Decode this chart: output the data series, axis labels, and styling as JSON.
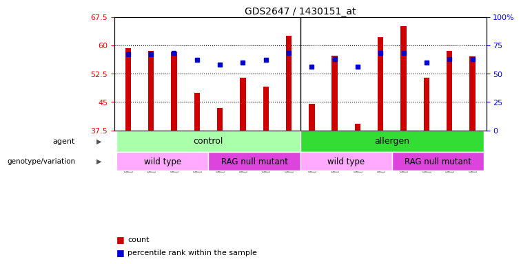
{
  "title": "GDS2647 / 1430151_at",
  "samples": [
    "GSM158136",
    "GSM158137",
    "GSM158144",
    "GSM158145",
    "GSM158132",
    "GSM158133",
    "GSM158140",
    "GSM158141",
    "GSM158138",
    "GSM158139",
    "GSM158146",
    "GSM158147",
    "GSM158134",
    "GSM158135",
    "GSM158142",
    "GSM158143"
  ],
  "counts": [
    59.3,
    58.5,
    58.2,
    47.5,
    43.5,
    51.5,
    49.0,
    62.5,
    44.5,
    57.3,
    39.2,
    62.2,
    65.0,
    51.5,
    58.5,
    57.0
  ],
  "percentiles": [
    67,
    67,
    68,
    62,
    58,
    60,
    62,
    68,
    56,
    63,
    56,
    68,
    68,
    60,
    63,
    63
  ],
  "ylim_left": [
    37.5,
    67.5
  ],
  "ylim_right": [
    0,
    100
  ],
  "yticks_left": [
    37.5,
    45.0,
    52.5,
    60.0,
    67.5
  ],
  "yticks_right": [
    0,
    25,
    50,
    75,
    100
  ],
  "bar_color": "#cc0000",
  "dot_color": "#0000cc",
  "agent_groups": [
    {
      "label": "control",
      "start": 0,
      "end": 8,
      "color": "#aaffaa"
    },
    {
      "label": "allergen",
      "start": 8,
      "end": 16,
      "color": "#33dd33"
    }
  ],
  "genotype_groups": [
    {
      "label": "wild type",
      "start": 0,
      "end": 4,
      "color": "#ffaaff"
    },
    {
      "label": "RAG null mutant",
      "start": 4,
      "end": 8,
      "color": "#dd44dd"
    },
    {
      "label": "wild type",
      "start": 8,
      "end": 12,
      "color": "#ffaaff"
    },
    {
      "label": "RAG null mutant",
      "start": 12,
      "end": 16,
      "color": "#dd44dd"
    }
  ],
  "legend_count_color": "#cc0000",
  "legend_dot_color": "#0000cc",
  "background_color": "#ffffff",
  "plot_bg_color": "#ffffff",
  "xtick_bg_color": "#dddddd"
}
